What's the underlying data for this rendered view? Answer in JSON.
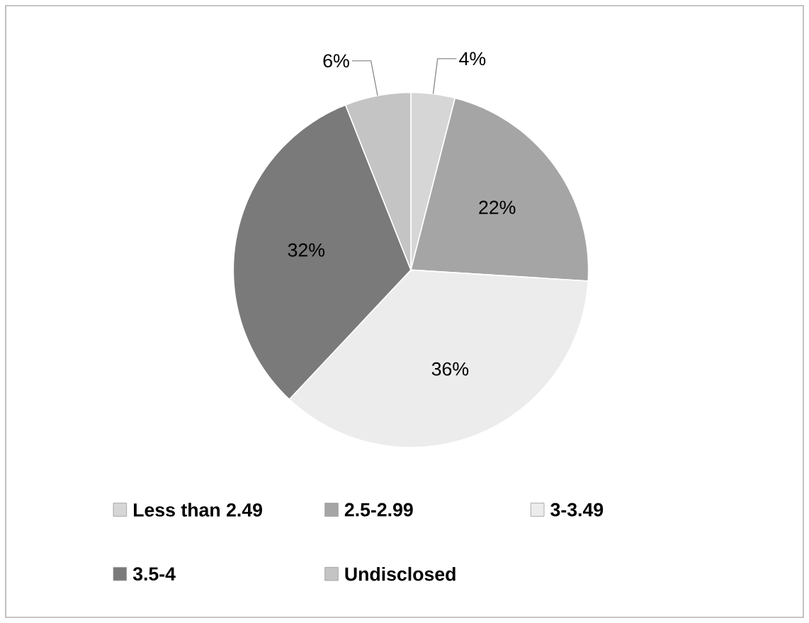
{
  "chart_data": {
    "type": "pie",
    "categories": [
      "Less than 2.49",
      "2.5-2.99",
      "3-3.49",
      "3.5-4",
      "Undisclosed"
    ],
    "values": [
      4,
      22,
      36,
      32,
      6
    ],
    "value_labels": [
      "4%",
      "22%",
      "36%",
      "32%",
      "6%"
    ],
    "colors": [
      "#d6d6d6",
      "#a5a5a5",
      "#ececec",
      "#7a7a7a",
      "#c4c4c4"
    ],
    "legend": "bottom"
  }
}
